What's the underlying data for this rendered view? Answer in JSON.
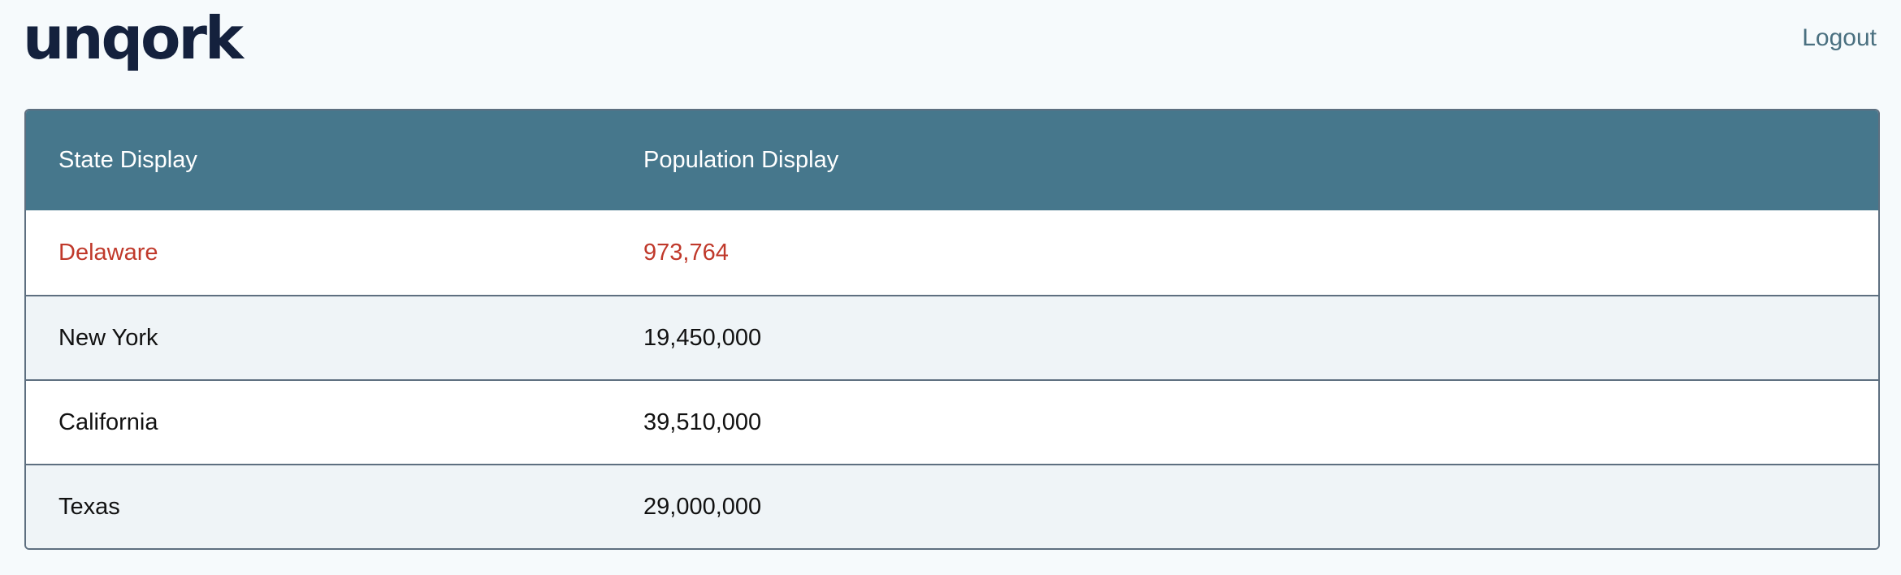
{
  "header": {
    "logo_text": "unqork",
    "logout_label": "Logout"
  },
  "table": {
    "columns": [
      {
        "label": "State Display"
      },
      {
        "label": "Population Display"
      }
    ],
    "rows": [
      {
        "state": "Delaware",
        "population": "973,764",
        "highlight": true
      },
      {
        "state": "New York",
        "population": "19,450,000"
      },
      {
        "state": "California",
        "population": "39,510,000"
      },
      {
        "state": "Texas",
        "population": "29,000,000"
      }
    ]
  },
  "colors": {
    "logo": "#14213d",
    "header_bg": "#46778c",
    "highlight_text": "#c0392b",
    "stripe": "#eff4f7",
    "page_bg": "#f6fafc"
  }
}
